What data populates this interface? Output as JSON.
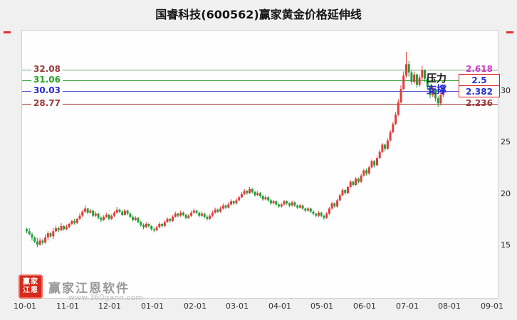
{
  "title": "国睿科技(600562)赢家黄金价格延伸线",
  "annotations": {
    "pressure": "压力",
    "support": "支撑"
  },
  "levels": [
    {
      "price": "32.08",
      "ratio": "2.618",
      "price_color": "#9b3b3b",
      "ratio_color": "#c93ec9",
      "line_color": "#6fa06f",
      "boxed": false
    },
    {
      "price": "31.06",
      "ratio": "2.5",
      "price_color": "#28a028",
      "ratio_color": "#2233cc",
      "line_color": "#28a028",
      "boxed": true
    },
    {
      "price": "30.03",
      "ratio": "2.382",
      "price_color": "#2a2ad0",
      "ratio_color": "#2233cc",
      "line_color": "#5555cc",
      "boxed": true
    },
    {
      "price": "28.77",
      "ratio": "2.236",
      "price_color": "#9b3b3b",
      "ratio_color": "#9b3b3b",
      "line_color": "#a03030",
      "boxed": false
    }
  ],
  "y_axis": {
    "ticks": [
      "30",
      "25",
      "20",
      "15"
    ]
  },
  "x_axis": {
    "labels": [
      "10-01",
      "11-01",
      "12-01",
      "01-01",
      "02-01",
      "03-01",
      "04-01",
      "05-01",
      "06-01",
      "07-01",
      "08-01",
      "09-01"
    ]
  },
  "watermark": {
    "logo_line1": "赢家",
    "logo_line2": "江恩",
    "name": "赢家江恩软件",
    "url": "www.360gann.com"
  },
  "chart_data": {
    "type": "candlestick",
    "title": "国睿科技(600562)赢家黄金价格延伸线",
    "symbol": "600562",
    "stock_name": "国睿科技",
    "up_color": "#e23c3c",
    "down_color": "#1fa037",
    "ylim": [
      14,
      35
    ],
    "y_ticks": [
      30,
      25,
      20,
      15
    ],
    "x_axis_labels": [
      "10-01",
      "11-01",
      "12-01",
      "01-01",
      "02-01",
      "03-01",
      "04-01",
      "05-01",
      "06-01",
      "07-01",
      "08-01",
      "09-01"
    ],
    "price_levels": [
      {
        "ratio": 2.618,
        "price": 32.08,
        "role": ""
      },
      {
        "ratio": 2.5,
        "price": 31.06,
        "role": "压力"
      },
      {
        "ratio": 2.382,
        "price": 30.03,
        "role": "支撑"
      },
      {
        "ratio": 2.236,
        "price": 28.77,
        "role": ""
      }
    ],
    "candles_format": "[open, high, low, close]",
    "candles": [
      [
        16.6,
        16.75,
        16.2,
        16.4
      ],
      [
        16.4,
        16.7,
        16.0,
        16.1
      ],
      [
        16.1,
        16.3,
        15.5,
        15.8
      ],
      [
        15.8,
        15.9,
        15.25,
        15.4
      ],
      [
        15.4,
        15.75,
        14.85,
        15.1
      ],
      [
        15.1,
        15.75,
        15.0,
        15.5
      ],
      [
        15.5,
        15.65,
        15.1,
        15.3
      ],
      [
        15.3,
        16.1,
        15.2,
        15.8
      ],
      [
        15.8,
        16.4,
        15.5,
        16.2
      ],
      [
        16.2,
        16.3,
        15.75,
        15.9
      ],
      [
        15.9,
        16.75,
        15.65,
        16.4
      ],
      [
        16.4,
        16.95,
        16.3,
        16.7
      ],
      [
        16.7,
        16.85,
        16.3,
        16.5
      ],
      [
        16.5,
        17.2,
        16.4,
        16.9
      ],
      [
        16.9,
        17.0,
        16.45,
        16.6
      ],
      [
        16.6,
        17.05,
        16.5,
        16.8
      ],
      [
        16.8,
        17.25,
        16.7,
        17.1
      ],
      [
        17.1,
        17.5,
        17.0,
        17.4
      ],
      [
        17.4,
        17.6,
        17.05,
        17.2
      ],
      [
        17.2,
        17.7,
        17.1,
        17.6
      ],
      [
        17.6,
        18.15,
        17.5,
        17.9
      ],
      [
        17.9,
        18.45,
        17.8,
        18.3
      ],
      [
        18.3,
        18.9,
        18.2,
        18.6
      ],
      [
        18.6,
        18.7,
        18.05,
        18.2
      ],
      [
        18.2,
        18.55,
        18.1,
        18.4
      ],
      [
        18.4,
        18.5,
        17.75,
        17.9
      ],
      [
        17.9,
        18.3,
        17.8,
        18.1
      ],
      [
        18.1,
        18.2,
        17.55,
        17.7
      ],
      [
        17.7,
        17.85,
        17.3,
        17.5
      ],
      [
        17.5,
        17.95,
        17.4,
        17.8
      ],
      [
        17.8,
        18.2,
        17.7,
        18.0
      ],
      [
        18.0,
        18.1,
        17.45,
        17.6
      ],
      [
        17.6,
        18.05,
        17.5,
        17.9
      ],
      [
        17.9,
        18.35,
        17.8,
        18.2
      ],
      [
        18.2,
        18.75,
        18.1,
        18.5
      ],
      [
        18.5,
        18.6,
        18.15,
        18.3
      ],
      [
        18.3,
        18.45,
        17.85,
        18.0
      ],
      [
        18.0,
        18.55,
        17.9,
        18.4
      ],
      [
        18.4,
        18.5,
        17.95,
        18.1
      ],
      [
        18.1,
        18.25,
        17.65,
        17.8
      ],
      [
        17.8,
        17.95,
        17.35,
        17.5
      ],
      [
        17.5,
        17.85,
        17.4,
        17.7
      ],
      [
        17.7,
        17.8,
        17.15,
        17.3
      ],
      [
        17.3,
        17.45,
        16.85,
        17.0
      ],
      [
        17.0,
        17.15,
        16.6,
        16.8
      ],
      [
        16.8,
        17.3,
        16.7,
        17.1
      ],
      [
        17.1,
        17.2,
        16.75,
        16.9
      ],
      [
        16.9,
        17.0,
        16.45,
        16.6
      ],
      [
        16.6,
        16.75,
        16.3,
        16.5
      ],
      [
        16.5,
        16.95,
        16.4,
        16.8
      ],
      [
        16.8,
        17.3,
        16.7,
        17.1
      ],
      [
        17.1,
        17.2,
        16.75,
        16.9
      ],
      [
        16.9,
        17.45,
        16.8,
        17.3
      ],
      [
        17.3,
        17.75,
        17.2,
        17.6
      ],
      [
        17.6,
        17.7,
        17.25,
        17.4
      ],
      [
        17.4,
        17.95,
        17.3,
        17.8
      ],
      [
        17.8,
        18.3,
        17.7,
        18.1
      ],
      [
        18.1,
        18.2,
        17.75,
        17.9
      ],
      [
        17.9,
        18.4,
        17.8,
        18.2
      ],
      [
        18.2,
        18.3,
        17.85,
        18.0
      ],
      [
        18.0,
        18.1,
        17.55,
        17.7
      ],
      [
        17.7,
        18.05,
        17.6,
        17.9
      ],
      [
        17.9,
        18.4,
        17.8,
        18.2
      ],
      [
        18.2,
        18.6,
        18.1,
        18.4
      ],
      [
        18.4,
        18.5,
        18.05,
        18.2
      ],
      [
        18.2,
        18.3,
        17.75,
        17.9
      ],
      [
        17.9,
        18.3,
        17.8,
        18.1
      ],
      [
        18.1,
        18.2,
        17.65,
        17.8
      ],
      [
        17.8,
        17.95,
        17.45,
        17.6
      ],
      [
        17.6,
        18.05,
        17.5,
        17.9
      ],
      [
        17.9,
        18.4,
        17.8,
        18.2
      ],
      [
        18.2,
        18.7,
        18.1,
        18.5
      ],
      [
        18.5,
        18.6,
        18.15,
        18.3
      ],
      [
        18.3,
        18.8,
        18.2,
        18.6
      ],
      [
        18.6,
        19.1,
        18.5,
        18.9
      ],
      [
        18.9,
        19.0,
        18.55,
        18.7
      ],
      [
        18.7,
        19.2,
        18.6,
        19.0
      ],
      [
        19.0,
        19.5,
        18.9,
        19.3
      ],
      [
        19.3,
        19.4,
        18.95,
        19.1
      ],
      [
        19.1,
        19.6,
        19.0,
        19.4
      ],
      [
        19.4,
        19.85,
        19.3,
        19.7
      ],
      [
        19.7,
        20.2,
        19.6,
        20.0
      ],
      [
        20.0,
        20.5,
        19.9,
        20.3
      ],
      [
        20.3,
        20.4,
        19.95,
        20.1
      ],
      [
        20.1,
        20.7,
        20.0,
        20.5
      ],
      [
        20.5,
        20.6,
        20.05,
        20.2
      ],
      [
        20.2,
        20.35,
        19.75,
        19.9
      ],
      [
        19.9,
        20.3,
        19.8,
        20.1
      ],
      [
        20.1,
        20.2,
        19.65,
        19.8
      ],
      [
        19.8,
        19.95,
        19.35,
        19.5
      ],
      [
        19.5,
        19.9,
        19.4,
        19.7
      ],
      [
        19.7,
        19.8,
        19.25,
        19.4
      ],
      [
        19.4,
        19.55,
        18.95,
        19.1
      ],
      [
        19.1,
        19.45,
        19.0,
        19.3
      ],
      [
        19.3,
        19.4,
        18.85,
        19.0
      ],
      [
        19.0,
        19.1,
        18.65,
        18.8
      ],
      [
        18.8,
        19.15,
        18.7,
        19.0
      ],
      [
        19.0,
        19.45,
        18.9,
        19.3
      ],
      [
        19.3,
        19.4,
        18.95,
        19.1
      ],
      [
        19.1,
        19.2,
        18.75,
        18.9
      ],
      [
        18.9,
        19.35,
        18.8,
        19.2
      ],
      [
        19.2,
        19.3,
        18.75,
        18.9
      ],
      [
        18.9,
        19.0,
        18.55,
        18.7
      ],
      [
        18.7,
        19.05,
        18.6,
        18.9
      ],
      [
        18.9,
        19.0,
        18.45,
        18.6
      ],
      [
        18.6,
        18.7,
        18.25,
        18.4
      ],
      [
        18.4,
        18.75,
        18.3,
        18.6
      ],
      [
        18.6,
        18.7,
        18.15,
        18.3
      ],
      [
        18.3,
        18.45,
        17.95,
        18.1
      ],
      [
        18.1,
        18.2,
        17.75,
        17.9
      ],
      [
        17.9,
        18.35,
        17.8,
        18.2
      ],
      [
        18.2,
        18.3,
        17.75,
        17.9
      ],
      [
        17.9,
        18.0,
        17.5,
        17.7
      ],
      [
        17.7,
        18.25,
        17.6,
        18.1
      ],
      [
        18.1,
        18.75,
        18.0,
        18.6
      ],
      [
        18.6,
        19.25,
        18.5,
        19.1
      ],
      [
        19.1,
        19.2,
        18.7,
        18.8
      ],
      [
        18.8,
        19.55,
        18.7,
        19.4
      ],
      [
        19.4,
        20.05,
        19.3,
        19.9
      ],
      [
        19.9,
        20.55,
        19.8,
        20.4
      ],
      [
        20.4,
        20.5,
        19.95,
        20.1
      ],
      [
        20.1,
        20.85,
        20.0,
        20.7
      ],
      [
        20.7,
        21.35,
        20.6,
        21.2
      ],
      [
        21.2,
        21.3,
        20.75,
        20.9
      ],
      [
        20.9,
        21.65,
        20.8,
        21.5
      ],
      [
        21.5,
        21.6,
        21.05,
        21.2
      ],
      [
        21.2,
        21.95,
        21.1,
        21.8
      ],
      [
        21.8,
        22.45,
        21.7,
        22.3
      ],
      [
        22.3,
        22.5,
        21.8,
        22.0
      ],
      [
        22.0,
        22.75,
        21.9,
        22.6
      ],
      [
        22.6,
        23.35,
        22.5,
        23.2
      ],
      [
        23.2,
        23.3,
        22.6,
        22.8
      ],
      [
        22.8,
        23.65,
        22.7,
        23.5
      ],
      [
        23.5,
        24.3,
        23.4,
        24.1
      ],
      [
        24.1,
        24.95,
        24.0,
        24.8
      ],
      [
        24.8,
        24.9,
        24.15,
        24.4
      ],
      [
        24.4,
        25.4,
        24.3,
        25.2
      ],
      [
        25.2,
        26.2,
        25.1,
        26.0
      ],
      [
        26.0,
        27.0,
        25.9,
        26.8
      ],
      [
        26.8,
        27.95,
        26.7,
        27.7
      ],
      [
        27.7,
        29.2,
        27.6,
        28.9
      ],
      [
        28.9,
        30.55,
        28.8,
        30.2
      ],
      [
        30.2,
        31.9,
        30.1,
        31.5
      ],
      [
        31.5,
        33.8,
        31.3,
        32.6
      ],
      [
        32.6,
        32.9,
        31.4,
        31.8
      ],
      [
        31.8,
        32.0,
        30.6,
        30.9
      ],
      [
        30.9,
        31.9,
        30.7,
        31.6
      ],
      [
        31.6,
        31.7,
        30.3,
        30.6
      ],
      [
        30.6,
        31.6,
        30.4,
        31.3
      ],
      [
        31.3,
        32.45,
        31.1,
        32.0
      ],
      [
        32.0,
        32.1,
        30.9,
        31.2
      ],
      [
        31.2,
        31.4,
        30.1,
        30.4
      ],
      [
        30.4,
        30.6,
        29.3,
        29.6
      ],
      [
        29.6,
        30.5,
        29.4,
        30.2
      ],
      [
        30.2,
        30.3,
        29.0,
        29.3
      ],
      [
        29.3,
        29.5,
        28.45,
        28.8
      ],
      [
        28.8,
        29.85,
        28.6,
        29.6
      ],
      [
        29.6,
        30.3,
        29.4,
        29.9
      ]
    ]
  }
}
